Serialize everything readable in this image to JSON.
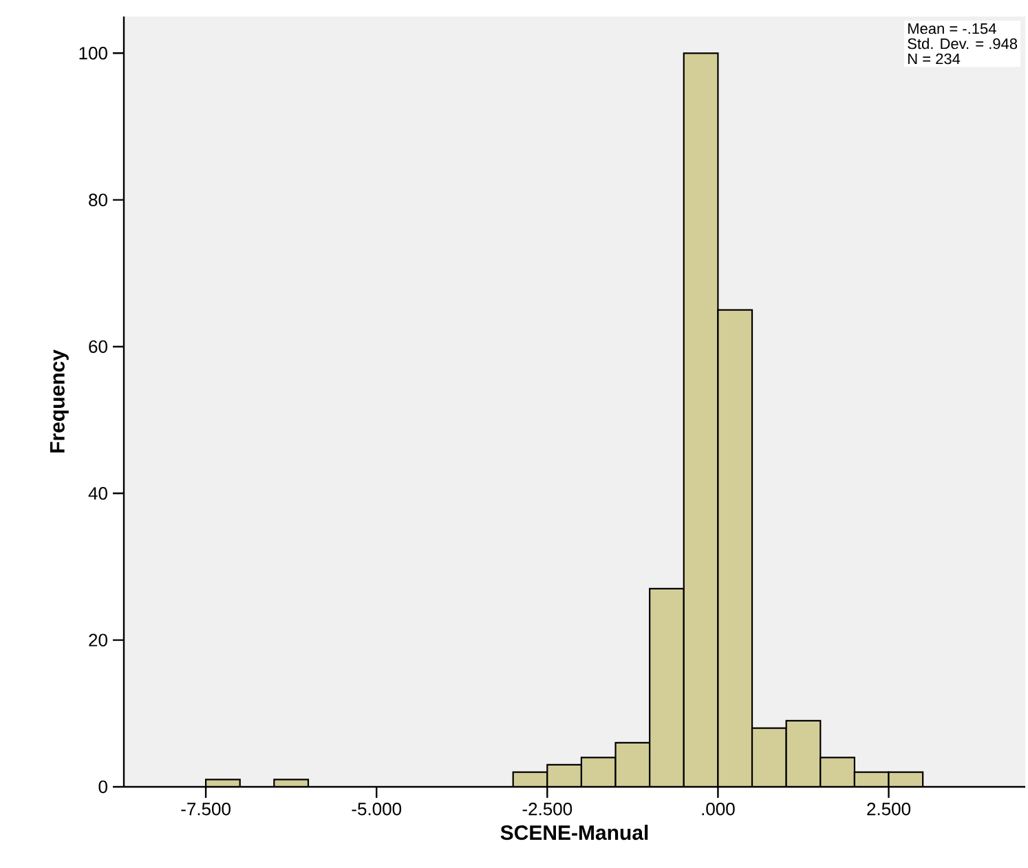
{
  "chart_data": {
    "type": "histogram",
    "xlabel": "SCENE-Manual",
    "ylabel": "Frequency",
    "bins": [
      -7.5,
      -7.0,
      -6.5,
      -6.0,
      -5.5,
      -5.0,
      -4.5,
      -4.0,
      -3.5,
      -3.0,
      -2.5,
      -2.0,
      -1.5,
      -1.0,
      -0.5,
      0.0,
      0.5,
      1.0,
      1.5,
      2.0,
      2.5,
      3.0
    ],
    "values": [
      1,
      0,
      1,
      0,
      0,
      0,
      0,
      0,
      0,
      2,
      3,
      4,
      6,
      27,
      100,
      65,
      8,
      9,
      4,
      2,
      2
    ],
    "color": "#d3ce97",
    "xlim": [
      -8.7,
      4.5
    ],
    "ylim": [
      0,
      105
    ],
    "xticks": [
      {
        "value": -7.5,
        "label": "-7.500"
      },
      {
        "value": -5.0,
        "label": "-5.000"
      },
      {
        "value": -2.5,
        "label": "-2.500"
      },
      {
        "value": 0,
        "label": ".000"
      },
      {
        "value": 2.5,
        "label": "2.500"
      }
    ],
    "yticks": [
      0,
      20,
      40,
      60,
      80,
      100
    ],
    "annotations": [
      "Mean = -.154",
      "Std. Dev. = .948",
      "N = 234"
    ]
  }
}
